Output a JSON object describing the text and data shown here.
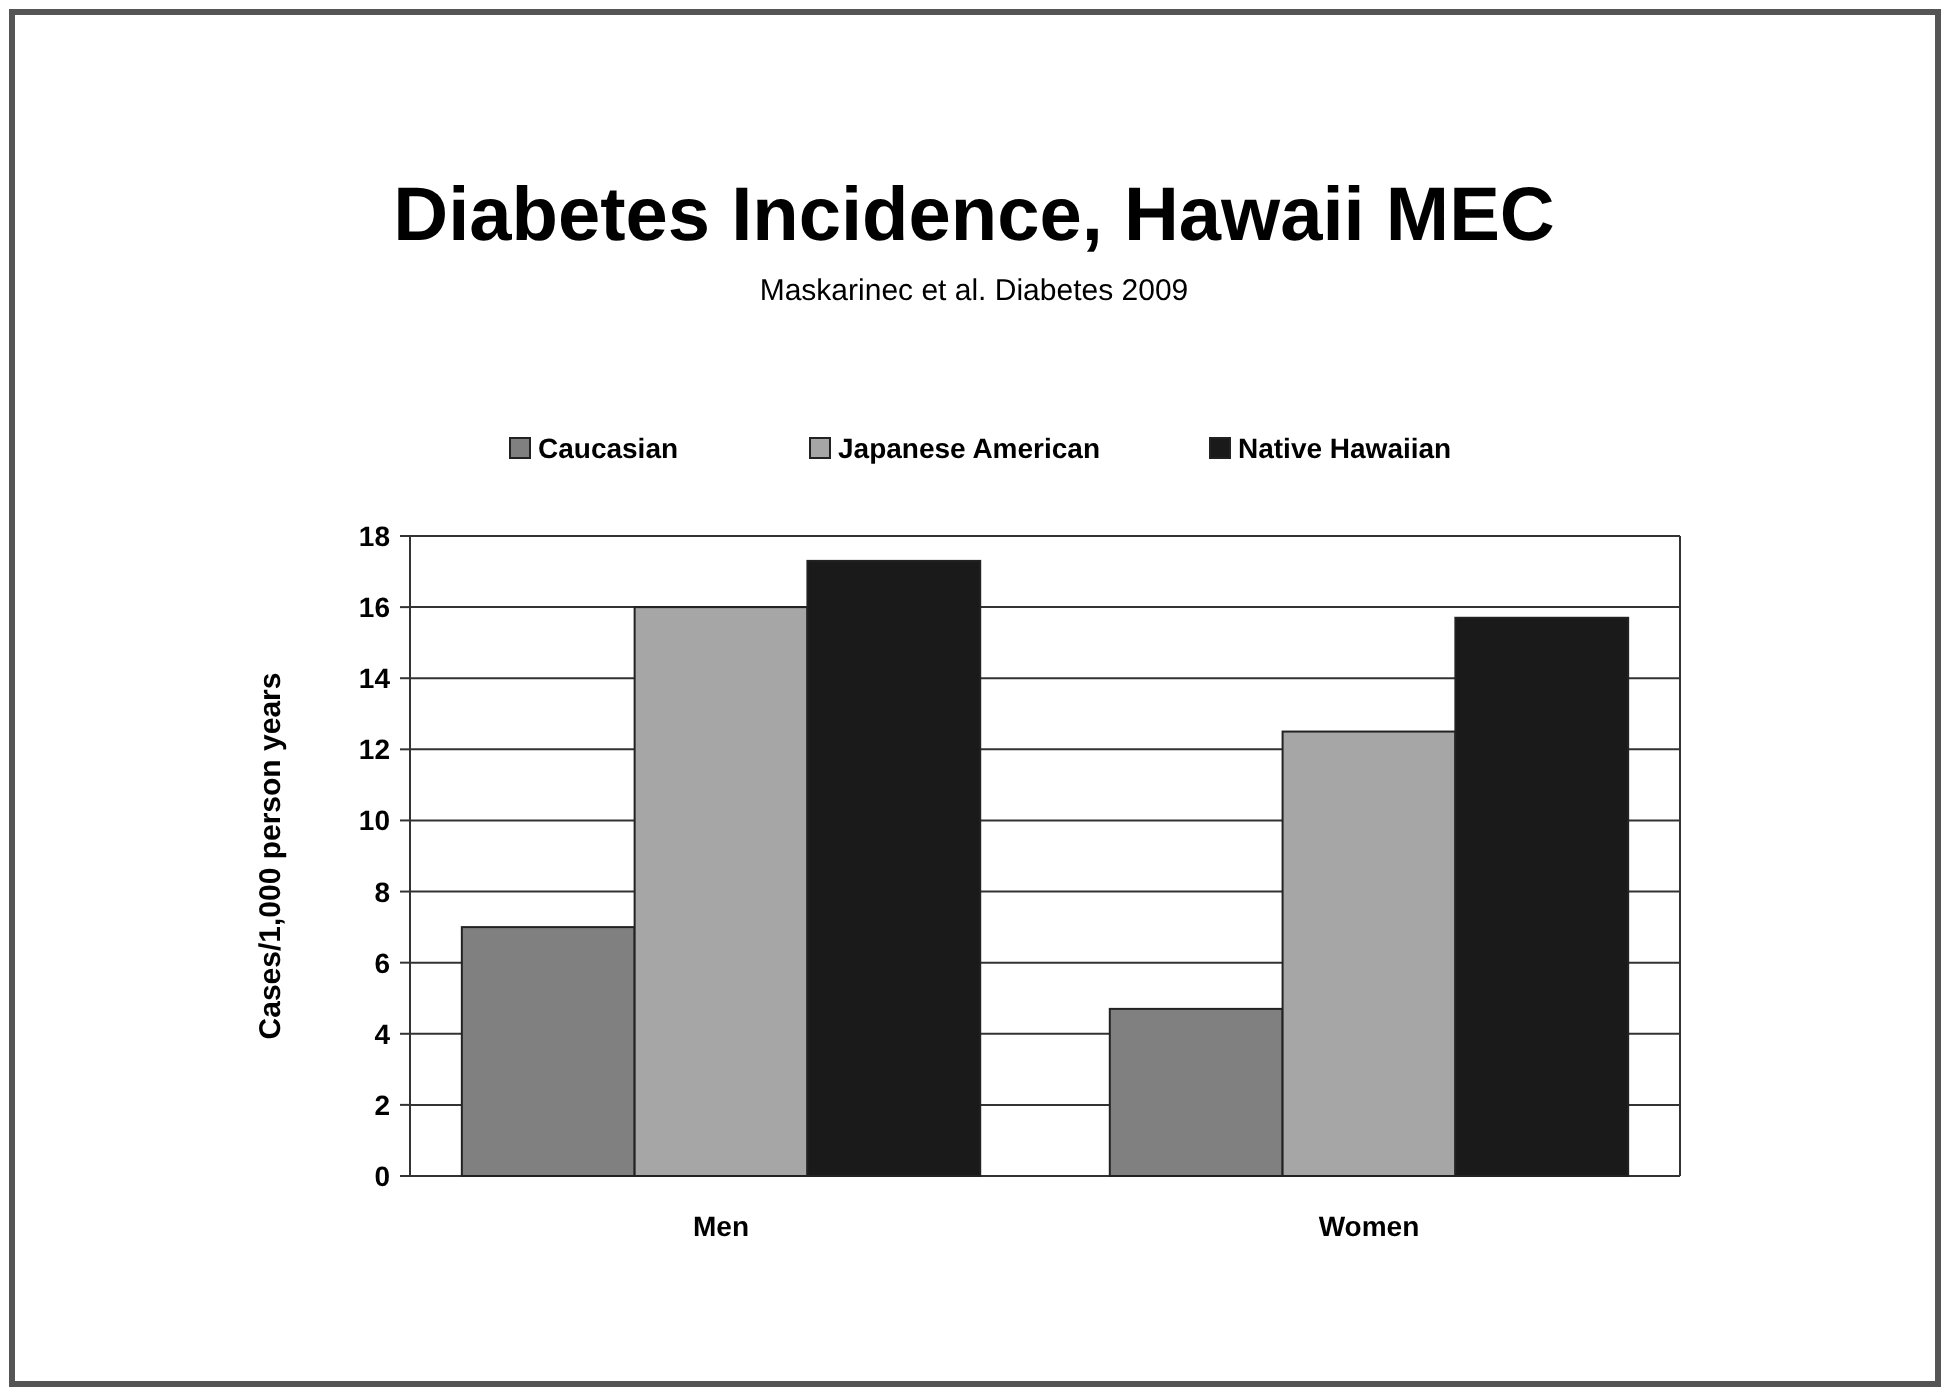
{
  "chart_data": {
    "type": "bar",
    "title": "Diabetes Incidence, Hawaii MEC",
    "subtitle": "Maskarinec et al. Diabetes 2009",
    "ylabel": "Cases/1,000 person years",
    "categories": [
      "Men",
      "Women"
    ],
    "series": [
      {
        "name": "Caucasian",
        "color": "#808080",
        "values": [
          7.0,
          4.7
        ]
      },
      {
        "name": "Japanese American",
        "color": "#a6a6a6",
        "values": [
          16.0,
          12.5
        ]
      },
      {
        "name": "Native Hawaiian",
        "color": "#1a1a1a",
        "values": [
          17.3,
          15.7
        ]
      }
    ],
    "ylim": [
      0,
      18
    ],
    "yticks": [
      0,
      2,
      4,
      6,
      8,
      10,
      12,
      14,
      16,
      18
    ],
    "grid": "y",
    "legend": "top"
  }
}
